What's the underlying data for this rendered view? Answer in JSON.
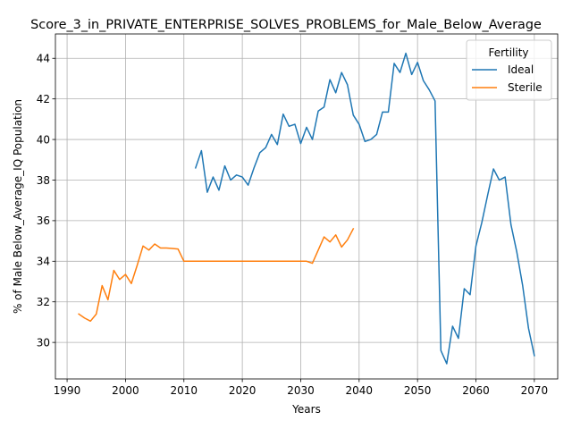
{
  "chart_data": {
    "type": "line",
    "title": "Score_3_in_PRIVATE_ENTERPRISE_SOLVES_PROBLEMS_for_Male_Below_Average",
    "xlabel": "Years",
    "ylabel": "% of Male Below_Average_IQ Population",
    "xlim": [
      1988,
      2074
    ],
    "ylim": [
      28.2,
      45.2
    ],
    "xticks": [
      1990,
      2000,
      2010,
      2020,
      2030,
      2040,
      2050,
      2060,
      2070
    ],
    "yticks": [
      30,
      32,
      34,
      36,
      38,
      40,
      42,
      44
    ],
    "grid": true,
    "legend": {
      "title": "Fertility",
      "placement": "top-right"
    },
    "series": [
      {
        "name": "Ideal",
        "color": "#1f77b4",
        "points": [
          [
            2012,
            38.6
          ],
          [
            2013,
            39.45
          ],
          [
            2014,
            37.4
          ],
          [
            2015,
            38.15
          ],
          [
            2016,
            37.5
          ],
          [
            2017,
            38.7
          ],
          [
            2018,
            38.0
          ],
          [
            2019,
            38.25
          ],
          [
            2020,
            38.15
          ],
          [
            2021,
            37.75
          ],
          [
            2022,
            38.6
          ],
          [
            2023,
            39.35
          ],
          [
            2024,
            39.6
          ],
          [
            2025,
            40.25
          ],
          [
            2026,
            39.75
          ],
          [
            2027,
            41.25
          ],
          [
            2028,
            40.65
          ],
          [
            2029,
            40.75
          ],
          [
            2030,
            39.8
          ],
          [
            2031,
            40.6
          ],
          [
            2032,
            40.0
          ],
          [
            2033,
            41.4
          ],
          [
            2034,
            41.6
          ],
          [
            2035,
            42.95
          ],
          [
            2036,
            42.3
          ],
          [
            2037,
            43.3
          ],
          [
            2038,
            42.7
          ],
          [
            2039,
            41.2
          ],
          [
            2040,
            40.75
          ],
          [
            2041,
            39.9
          ],
          [
            2042,
            40.0
          ],
          [
            2043,
            40.25
          ],
          [
            2044,
            41.35
          ],
          [
            2045,
            41.35
          ],
          [
            2046,
            43.75
          ],
          [
            2047,
            43.3
          ],
          [
            2048,
            44.25
          ],
          [
            2049,
            43.2
          ],
          [
            2050,
            43.8
          ],
          [
            2051,
            42.9
          ],
          [
            2052,
            42.45
          ],
          [
            2053,
            41.9
          ],
          [
            2054,
            29.6
          ],
          [
            2055,
            28.95
          ],
          [
            2056,
            30.8
          ],
          [
            2057,
            30.2
          ],
          [
            2058,
            32.65
          ],
          [
            2059,
            32.35
          ],
          [
            2060,
            34.75
          ],
          [
            2061,
            35.9
          ],
          [
            2062,
            37.25
          ],
          [
            2063,
            38.55
          ],
          [
            2064,
            38.0
          ],
          [
            2065,
            38.15
          ],
          [
            2066,
            35.8
          ],
          [
            2067,
            34.45
          ],
          [
            2068,
            32.8
          ],
          [
            2069,
            30.7
          ],
          [
            2070,
            29.35
          ]
        ]
      },
      {
        "name": "Sterile",
        "color": "#ff7f0e",
        "points": [
          [
            1992,
            31.4
          ],
          [
            1993,
            31.2
          ],
          [
            1994,
            31.05
          ],
          [
            1995,
            31.4
          ],
          [
            1996,
            32.8
          ],
          [
            1997,
            32.1
          ],
          [
            1998,
            33.55
          ],
          [
            1999,
            33.1
          ],
          [
            2000,
            33.35
          ],
          [
            2001,
            32.9
          ],
          [
            2002,
            33.8
          ],
          [
            2003,
            34.75
          ],
          [
            2004,
            34.55
          ],
          [
            2005,
            34.85
          ],
          [
            2006,
            34.65
          ],
          [
            2007,
            34.65
          ],
          [
            2008,
            34.63
          ],
          [
            2009,
            34.6
          ],
          [
            2010,
            34.0
          ],
          [
            2011,
            34.0
          ],
          [
            2012,
            34.0
          ],
          [
            2013,
            34.0
          ],
          [
            2014,
            34.0
          ],
          [
            2015,
            34.0
          ],
          [
            2016,
            34.0
          ],
          [
            2017,
            34.0
          ],
          [
            2018,
            34.0
          ],
          [
            2019,
            34.0
          ],
          [
            2020,
            34.0
          ],
          [
            2021,
            34.0
          ],
          [
            2022,
            34.0
          ],
          [
            2023,
            34.0
          ],
          [
            2024,
            34.0
          ],
          [
            2025,
            34.0
          ],
          [
            2026,
            34.0
          ],
          [
            2027,
            34.0
          ],
          [
            2028,
            34.0
          ],
          [
            2029,
            34.0
          ],
          [
            2030,
            34.0
          ],
          [
            2031,
            34.0
          ],
          [
            2032,
            33.9
          ],
          [
            2033,
            34.55
          ],
          [
            2034,
            35.2
          ],
          [
            2035,
            34.95
          ],
          [
            2036,
            35.3
          ],
          [
            2037,
            34.7
          ],
          [
            2038,
            35.05
          ],
          [
            2039,
            35.6
          ]
        ]
      }
    ]
  }
}
